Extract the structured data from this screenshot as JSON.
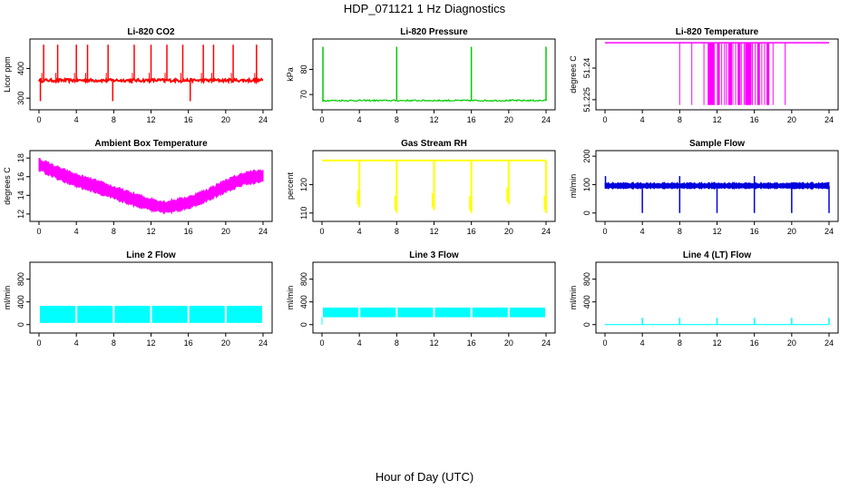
{
  "title": "HDP_071121  1 Hz Diagnostics",
  "x_caption": "Hour of Day (UTC)",
  "chart_data": [
    {
      "type": "line",
      "title": "Li-820 CO2",
      "ylabel": "Licor ppm",
      "color": "#ff0000",
      "xlim": [
        0,
        24
      ],
      "xticks": [
        0,
        4,
        8,
        12,
        16,
        20,
        24
      ],
      "ylim": [
        270,
        490
      ],
      "yticks": [
        300,
        400
      ],
      "baseline": 360,
      "noise": 5,
      "spikes_up": [
        0.5,
        2,
        4,
        5.2,
        7.4,
        10.2,
        12,
        13.7,
        15.4,
        17.6,
        18.7,
        20.8,
        23.3
      ],
      "spikes_up_value": 480,
      "spikes_down": [
        0.15,
        7.9,
        16.2
      ],
      "spikes_down_value": 290
    },
    {
      "type": "line",
      "title": "Li-820 Pressure",
      "ylabel": "kPa",
      "color": "#00cc00",
      "xlim": [
        0,
        24
      ],
      "xticks": [
        0,
        4,
        8,
        12,
        16,
        20,
        24
      ],
      "ylim": [
        65,
        91
      ],
      "yticks": [
        70,
        80
      ],
      "baseline": 67.6,
      "noise": 0.3,
      "spikes_up": [
        0.1,
        8,
        16,
        24
      ],
      "spikes_up_value": 89
    },
    {
      "type": "line",
      "title": "Li-820 Temperature",
      "ylabel": "degrees C",
      "color": "#ff00ff",
      "xlim": [
        0,
        24
      ],
      "xticks": [
        0,
        4,
        8,
        12,
        16,
        20,
        24
      ],
      "ylim": [
        51.2215,
        51.2525
      ],
      "yticks": [
        51.225,
        51.24
      ],
      "baseline": 51.252,
      "low_value": 51.2225,
      "dropouts": [
        8,
        9.3,
        10.6,
        11.1,
        11.35,
        11.7,
        12.1,
        12.5,
        12.8,
        13.0,
        13.4,
        13.7,
        14.0,
        14.3,
        14.6,
        14.9,
        15.2,
        15.5,
        15.8,
        16.1,
        16.4,
        16.8,
        17.1,
        17.5,
        18.0,
        19.3
      ]
    },
    {
      "type": "line",
      "title": "Ambient Box Temperature",
      "ylabel": "degrees C",
      "color": "#ff00ff",
      "xlim": [
        0,
        24
      ],
      "xticks": [
        0,
        4,
        8,
        12,
        16,
        20,
        24
      ],
      "ylim": [
        11.5,
        18.5
      ],
      "yticks": [
        12,
        14,
        16,
        18
      ],
      "x": [
        0,
        2,
        4,
        6,
        8,
        10,
        12,
        13.5,
        14,
        16,
        18,
        20,
        22,
        24
      ],
      "y": [
        17.3,
        16.4,
        15.6,
        15.0,
        14.3,
        13.6,
        13.0,
        12.7,
        12.8,
        13.2,
        14.0,
        15.0,
        15.8,
        16.1
      ],
      "band": 0.7
    },
    {
      "type": "line",
      "title": "Gas Stream RH",
      "ylabel": "percent",
      "color": "#ffff00",
      "xlim": [
        0,
        24
      ],
      "xticks": [
        0,
        4,
        8,
        12,
        16,
        20,
        24
      ],
      "ylim": [
        108,
        131
      ],
      "yticks": [
        110,
        120
      ],
      "baseline": 128.5,
      "dips": [
        [
          4,
          112
        ],
        [
          8,
          110
        ],
        [
          12,
          111
        ],
        [
          16,
          110
        ],
        [
          20,
          113
        ],
        [
          24,
          110
        ]
      ]
    },
    {
      "type": "line",
      "title": "Sample Flow",
      "ylabel": "ml/min",
      "color": "#0000dd",
      "xlim": [
        0,
        24
      ],
      "xticks": [
        0,
        4,
        8,
        12,
        16,
        20,
        24
      ],
      "ylim": [
        -20,
        210
      ],
      "yticks": [
        0,
        100,
        200
      ],
      "baseline": 95,
      "band": 12,
      "dips": [
        4,
        8,
        12,
        16,
        20,
        24
      ],
      "dip_value": 0,
      "spikes_up": [
        0.05,
        8,
        16
      ],
      "spikes_up_value": 130
    },
    {
      "type": "area",
      "title": "Line 2 Flow",
      "ylabel": "ml/min",
      "color": "#00ffff",
      "xlim": [
        0,
        24
      ],
      "xticks": [
        0,
        4,
        8,
        12,
        16,
        20,
        24
      ],
      "ylim": [
        -100,
        1050
      ],
      "yticks": [
        0,
        400,
        800
      ],
      "low": 30,
      "high": 330,
      "gaps": [
        4,
        8,
        12,
        16,
        20
      ]
    },
    {
      "type": "area",
      "title": "Line 3 Flow",
      "ylabel": "ml/min",
      "color": "#00ffff",
      "xlim": [
        0,
        24
      ],
      "xticks": [
        0,
        4,
        8,
        12,
        16,
        20,
        24
      ],
      "ylim": [
        -100,
        1050
      ],
      "yticks": [
        0,
        400,
        800
      ],
      "low": 130,
      "high": 300,
      "gaps": [
        4,
        8,
        12,
        16,
        20
      ]
    },
    {
      "type": "line",
      "title": "Line 4 (LT) Flow",
      "ylabel": "ml/min",
      "color": "#00ffff",
      "xlim": [
        0,
        24
      ],
      "xticks": [
        0,
        4,
        8,
        12,
        16,
        20,
        24
      ],
      "ylim": [
        -100,
        1050
      ],
      "yticks": [
        0,
        400,
        800
      ],
      "baseline": 0,
      "spikes_up": [
        4,
        8,
        12,
        16,
        20,
        24
      ],
      "spikes_up_value": 120
    }
  ]
}
